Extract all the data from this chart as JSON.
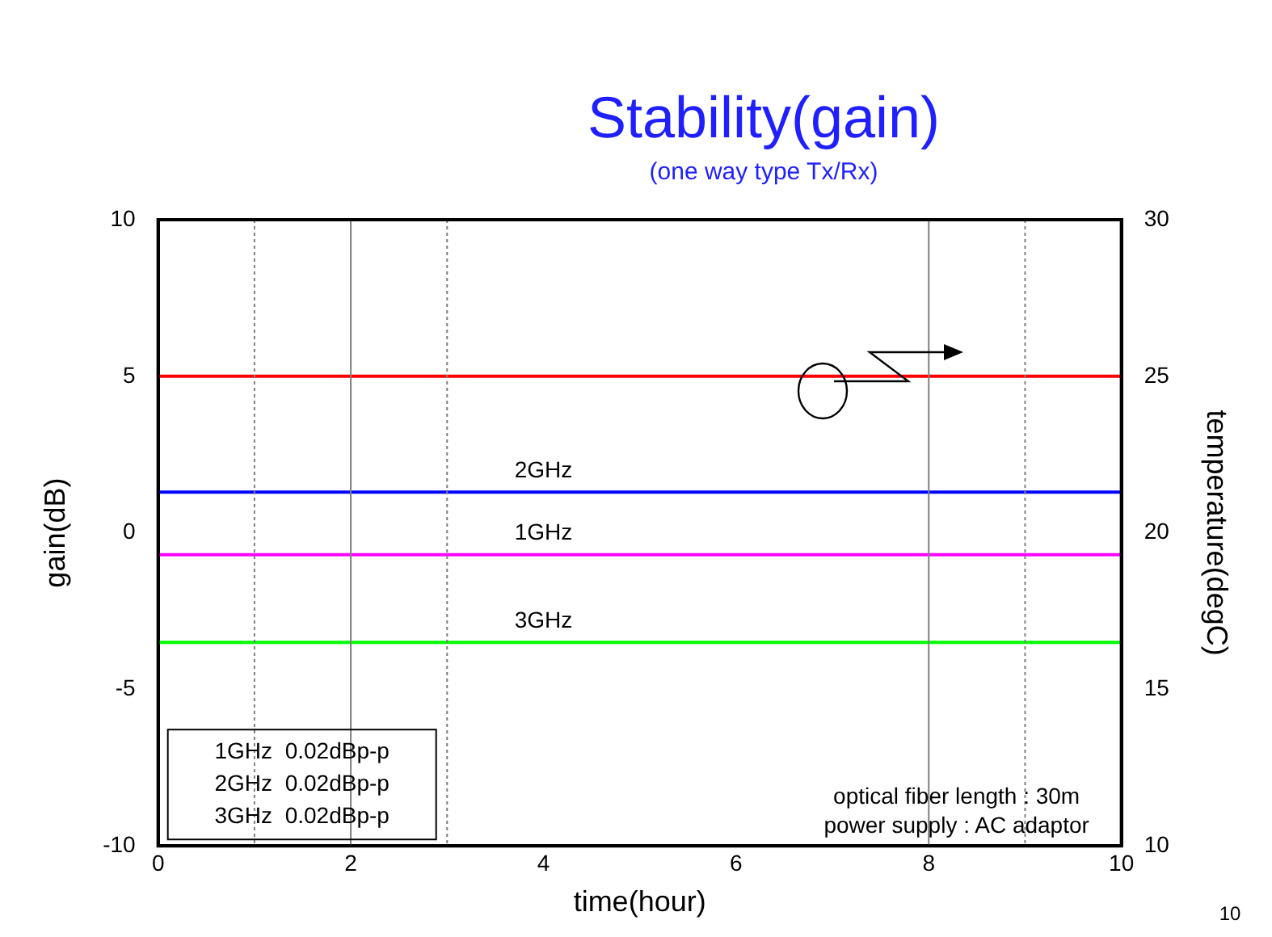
{
  "chart_data": {
    "type": "line",
    "title": "Stability(gain)",
    "subtitle": "(one way type Tx/Rx)",
    "xlabel": "time(hour)",
    "ylabel": "gain(dB)",
    "y2label": "temperature(degC)",
    "x": [
      0,
      1,
      2,
      3,
      4,
      5,
      6,
      7,
      8,
      9,
      10
    ],
    "series": [
      {
        "color": "#ff0000",
        "axis": "y2",
        "values": [
          25,
          25,
          25,
          25,
          25,
          25,
          25,
          25,
          25,
          25,
          25
        ]
      },
      {
        "name": "2GHz",
        "color": "#0000ff",
        "values": [
          1.3,
          1.3,
          1.3,
          1.3,
          1.3,
          1.3,
          1.3,
          1.3,
          1.3,
          1.3,
          1.3
        ]
      },
      {
        "name": "1GHz",
        "color": "#ff00ff",
        "values": [
          -0.7,
          -0.7,
          -0.7,
          -0.7,
          -0.7,
          -0.7,
          -0.7,
          -0.7,
          -0.7,
          -0.7,
          -0.7
        ]
      },
      {
        "name": "3GHz",
        "color": "#00ff00",
        "values": [
          -3.5,
          -3.5,
          -3.5,
          -3.5,
          -3.5,
          -3.5,
          -3.5,
          -3.5,
          -3.5,
          -3.5,
          -3.5
        ]
      }
    ],
    "xlim": [
      0,
      10
    ],
    "xticks": [
      0,
      2,
      4,
      6,
      8,
      10
    ],
    "ylim": [
      -10,
      10
    ],
    "yticks": [
      -10,
      -5,
      0,
      5,
      10
    ],
    "y2lim": [
      10,
      30
    ],
    "y2ticks": [
      10,
      15,
      20,
      25,
      30
    ],
    "ref_lines": [
      {
        "axis": "x",
        "value": 1,
        "color": "#808080",
        "line_style": "dotted"
      },
      {
        "axis": "x",
        "value": 2,
        "color": "#808080",
        "line_style": "solid"
      },
      {
        "axis": "x",
        "value": 3,
        "color": "#808080",
        "line_style": "dotted"
      },
      {
        "axis": "x",
        "value": 8,
        "color": "#808080",
        "line_style": "solid"
      },
      {
        "axis": "x",
        "value": 9,
        "color": "#808080",
        "line_style": "dotted"
      }
    ],
    "annotations": [
      "1GHz  0.02dBp-p",
      "2GHz  0.02dBp-p",
      "3GHz  0.02dBp-p",
      "optical fiber length : 30m",
      "power supply : AC adaptor",
      "10"
    ],
    "grid": false,
    "marker": "none",
    "line_style": "solid"
  }
}
